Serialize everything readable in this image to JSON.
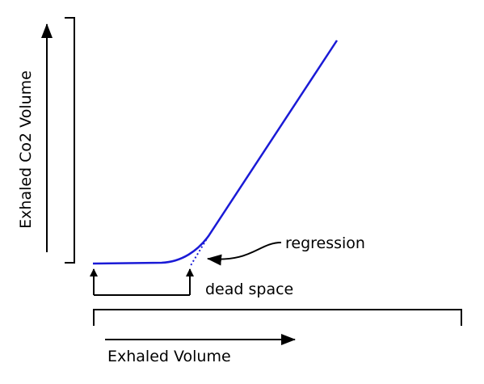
{
  "y_axis_label": "Exhaled Co2 Volume",
  "x_axis_label": "Exhaled Volume",
  "regression_label": "regression",
  "dead_space_label": "dead space"
}
